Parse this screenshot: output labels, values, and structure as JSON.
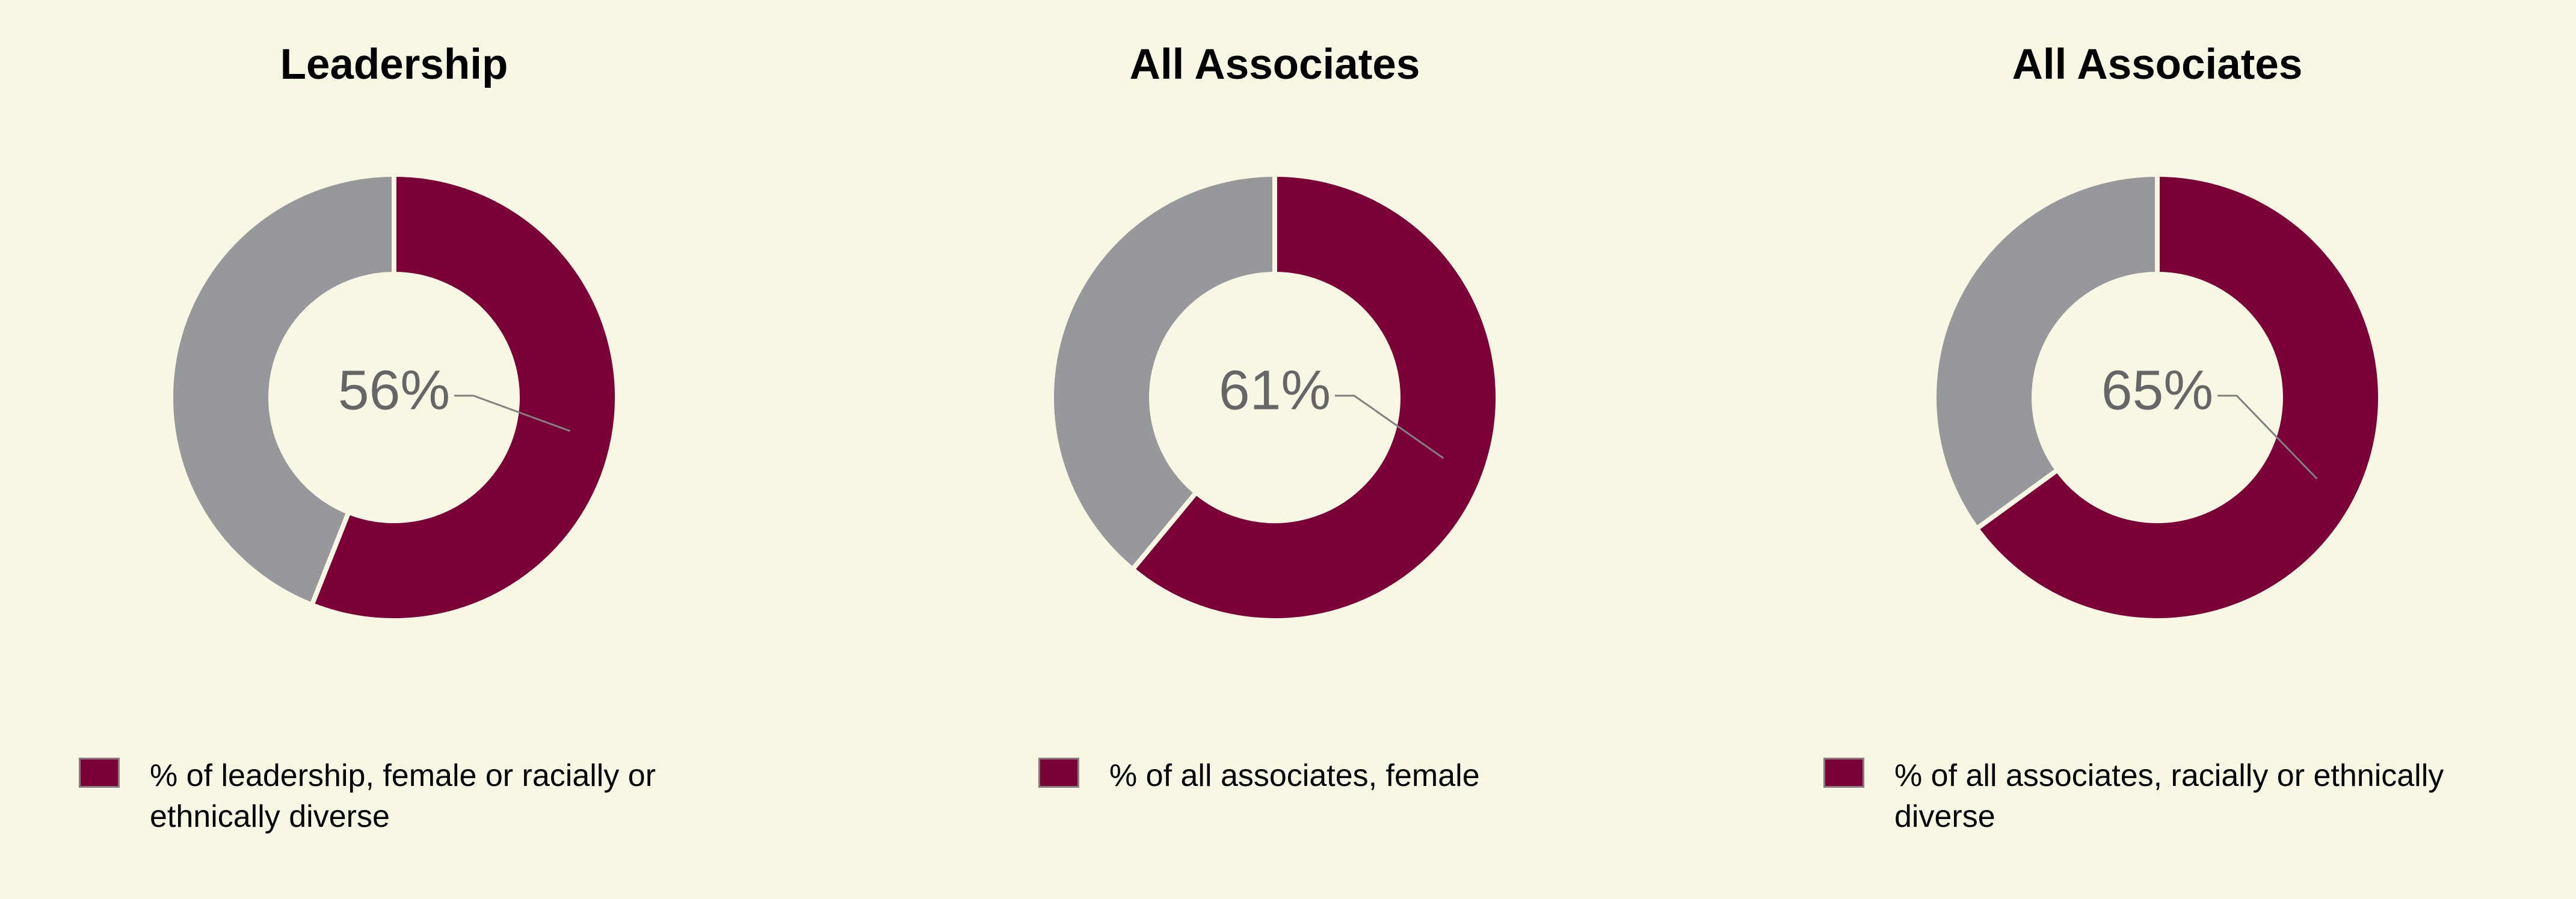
{
  "chart_data": [
    {
      "type": "pie",
      "title": "Leadership",
      "categories": [
        "% of leadership, female or racially or ethnically diverse",
        null
      ],
      "values": [
        56,
        44
      ],
      "value_labels": [
        "56%",
        null
      ],
      "colors": [
        "#7a0037",
        "#97989b"
      ],
      "legend": "bottom-left"
    },
    {
      "type": "pie",
      "title": "All Associates",
      "categories": [
        "% of all associates, female",
        null
      ],
      "values": [
        61,
        39
      ],
      "value_labels": [
        "61%",
        null
      ],
      "colors": [
        "#7a0037",
        "#97989b"
      ],
      "legend": "bottom-left"
    },
    {
      "type": "pie",
      "title": "All Associates",
      "categories": [
        "% of all associates, racially or ethnically diverse",
        null
      ],
      "values": [
        65,
        35
      ],
      "value_labels": [
        "65%",
        null
      ],
      "colors": [
        "#7a0037",
        "#97989b"
      ],
      "legend": "bottom-left"
    }
  ]
}
